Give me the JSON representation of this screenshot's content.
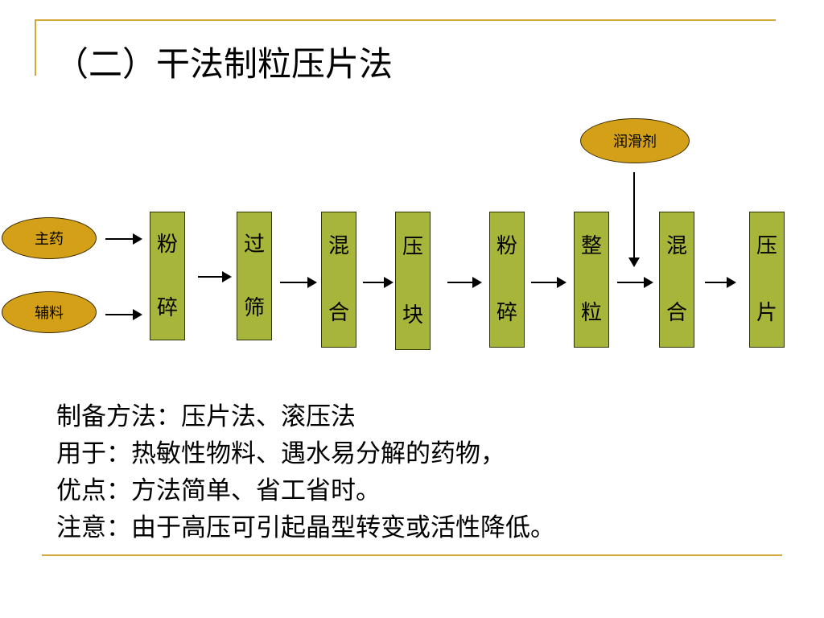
{
  "slide": {
    "title": "（二）干法制粒压片法",
    "colors": {
      "rule": "#d4a73a",
      "oval_fill": "#d4a017",
      "step_fill": "#a7b63a"
    }
  },
  "diagram": {
    "inputs": [
      "主药",
      "辅料"
    ],
    "additive": "润滑剂",
    "steps": [
      {
        "c1": "粉",
        "c2": "碎"
      },
      {
        "c1": "过",
        "c2": "筛"
      },
      {
        "c1": "混",
        "c2": "合"
      },
      {
        "c1": "压",
        "c2": "块"
      },
      {
        "c1": "粉",
        "c2": "碎"
      },
      {
        "c1": "整",
        "c2": "粒"
      },
      {
        "c1": "混",
        "c2": "合"
      },
      {
        "c1": "压",
        "c2": "片"
      }
    ]
  },
  "notes": [
    "制备方法：压片法、滚压法",
    "用于：热敏性物料、遇水易分解的药物，",
    "优点：方法简单、省工省时。",
    "注意：由于高压可引起晶型转变或活性降低。"
  ]
}
